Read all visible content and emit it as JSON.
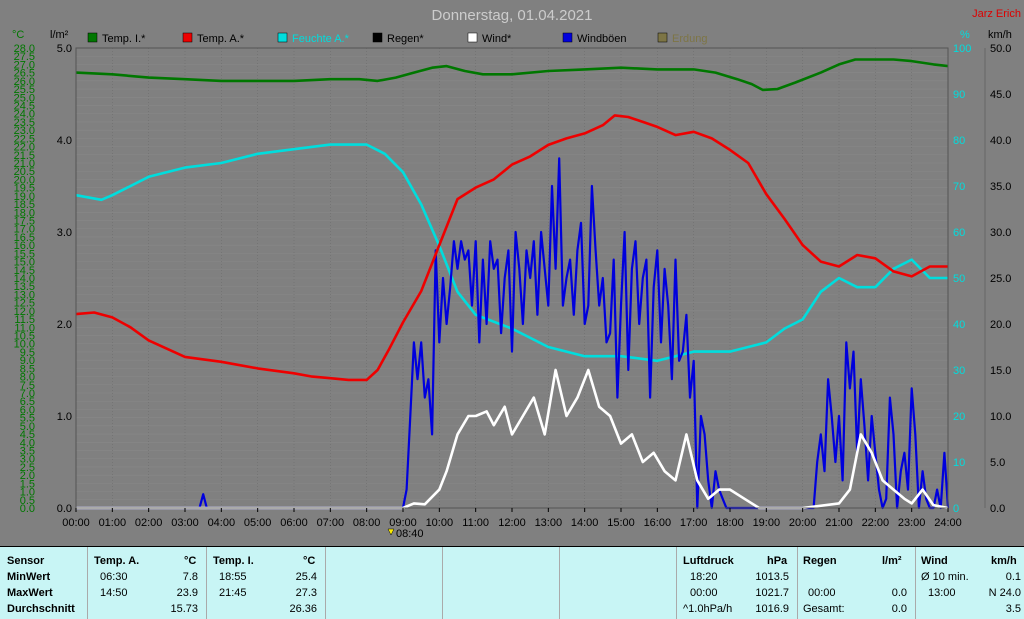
{
  "header": {
    "title": "Donnerstag, 01.04.2021",
    "author": "Jarz Erich",
    "left_units": [
      "°C",
      "l/m²"
    ],
    "right_units": [
      "%",
      "km/h"
    ],
    "marker_label": "08:40"
  },
  "legend": [
    {
      "label": "Temp. I.*",
      "color": "#007700"
    },
    {
      "label": "Temp. A.*",
      "color": "#ee0000"
    },
    {
      "label": "Feuchte A.*",
      "color": "#00dddd"
    },
    {
      "label": "Regen*",
      "color": "#000000"
    },
    {
      "label": "Wind*",
      "color": "#ffffff"
    },
    {
      "label": "Windböen",
      "color": "#0000dd"
    },
    {
      "label": "Erdung",
      "color": "#7d7545"
    }
  ],
  "colors": {
    "plot_bg": "#808080",
    "temp_scale": "#007700",
    "humidity_scale": "#00dddd",
    "title": "#cccccc",
    "author": "#dd0000"
  },
  "chart_data": {
    "type": "line",
    "x_axis": {
      "range": [
        "00:00",
        "24:00"
      ],
      "ticks": [
        "00:00",
        "01:00",
        "02:00",
        "03:00",
        "04:00",
        "05:00",
        "06:00",
        "07:00",
        "08:00",
        "09:00",
        "10:00",
        "11:00",
        "12:00",
        "13:00",
        "14:00",
        "15:00",
        "16:00",
        "17:00",
        "18:00",
        "19:00",
        "20:00",
        "21:00",
        "22:00",
        "23:00",
        "24:00"
      ]
    },
    "y_temp": {
      "unit": "°C",
      "ylim": [
        0,
        28
      ],
      "ticks": [
        "0.0",
        "0.5",
        "1.0",
        "1.5",
        "2.0",
        "2.5",
        "3.0",
        "3.5",
        "4.0",
        "4.5",
        "5.0",
        "5.5",
        "6.0",
        "6.5",
        "7.0",
        "7.5",
        "8.0",
        "8.5",
        "9.0",
        "9.5",
        "10.0",
        "10.5",
        "11.0",
        "11.5",
        "12.0",
        "12.5",
        "13.0",
        "13.5",
        "14.0",
        "14.5",
        "15.0",
        "15.5",
        "16.0",
        "16.5",
        "17.0",
        "17.5",
        "18.0",
        "18.5",
        "19.0",
        "19.5",
        "20.0",
        "20.5",
        "21.0",
        "21.5",
        "22.0",
        "22.5",
        "23.0",
        "23.5",
        "24.0",
        "24.5",
        "25.0",
        "25.5",
        "26.0",
        "26.5",
        "27.0",
        "27.5",
        "28.0"
      ]
    },
    "y_rain": {
      "unit": "l/m²",
      "ylim": [
        0,
        5
      ],
      "ticks": [
        "0.0",
        "1.0",
        "2.0",
        "3.0",
        "4.0",
        "5.0"
      ]
    },
    "y_humidity": {
      "unit": "%",
      "ylim": [
        0,
        100
      ],
      "ticks": [
        "0",
        "10",
        "20",
        "30",
        "40",
        "50",
        "60",
        "70",
        "80",
        "90",
        "100"
      ]
    },
    "y_wind": {
      "unit": "km/h",
      "ylim": [
        0,
        50
      ],
      "ticks": [
        "0.0",
        "5.0",
        "10.0",
        "15.0",
        "20.0",
        "25.0",
        "30.0",
        "35.0",
        "40.0",
        "45.0",
        "50.0"
      ]
    },
    "series": [
      {
        "name": "Temp. I.*",
        "axis": "temp",
        "color": "#007700",
        "x": [
          0,
          1,
          2,
          3,
          4,
          5,
          6,
          7,
          7.8,
          8.3,
          8.8,
          9.3,
          9.8,
          10.2,
          10.7,
          11.2,
          12,
          13,
          14,
          15,
          16,
          17,
          17.6,
          18.2,
          18.6,
          18.9,
          19.3,
          19.8,
          20.5,
          21,
          21.45,
          22,
          22.5,
          23,
          23.6,
          24
        ],
        "y": [
          26.5,
          26.4,
          26.2,
          26.1,
          26.0,
          26.0,
          26.0,
          26.1,
          26.1,
          26.0,
          26.2,
          26.5,
          26.8,
          26.9,
          26.6,
          26.4,
          26.4,
          26.6,
          26.7,
          26.8,
          26.7,
          26.7,
          26.5,
          26.1,
          25.8,
          25.45,
          25.5,
          25.9,
          26.5,
          27.0,
          27.3,
          27.3,
          27.3,
          27.2,
          27.0,
          26.9
        ]
      },
      {
        "name": "Temp. A.*",
        "axis": "temp",
        "color": "#ee0000",
        "x": [
          0,
          0.5,
          1,
          1.5,
          2,
          3,
          4,
          5,
          6,
          6.5,
          7,
          7.5,
          8,
          8.3,
          8.6,
          9,
          9.5,
          10,
          10.5,
          11,
          11.5,
          12,
          12.5,
          13,
          13.5,
          14,
          14.5,
          14.83,
          15.2,
          15.6,
          16,
          16.5,
          17,
          17.5,
          18,
          18.5,
          19,
          19.5,
          20,
          20.5,
          21,
          21.5,
          22,
          22.5,
          23,
          23.5,
          24
        ],
        "y": [
          11.8,
          11.9,
          11.6,
          11.0,
          10.2,
          9.2,
          8.9,
          8.5,
          8.2,
          8.0,
          7.9,
          7.8,
          7.8,
          8.4,
          9.6,
          11.3,
          13.2,
          16.0,
          18.8,
          19.5,
          20.0,
          20.9,
          21.4,
          22.1,
          22.5,
          22.8,
          23.3,
          23.9,
          23.8,
          23.5,
          23.2,
          22.7,
          22.9,
          22.5,
          21.8,
          21.0,
          19.1,
          17.6,
          16.0,
          15.0,
          14.7,
          15.4,
          15.2,
          14.4,
          14.1,
          14.7,
          14.7
        ]
      },
      {
        "name": "Feuchte A.*",
        "axis": "humidity",
        "color": "#00dddd",
        "x": [
          0,
          0.7,
          1,
          2,
          3,
          4,
          5,
          6,
          7,
          7.5,
          8,
          8.5,
          9,
          9.5,
          10,
          10.5,
          11,
          12,
          13,
          14,
          15,
          16,
          16.5,
          17,
          17.5,
          18,
          18.5,
          19,
          19.5,
          20,
          20.5,
          21,
          21.5,
          22,
          22.5,
          23,
          23.5,
          24
        ],
        "y": [
          68,
          67,
          68,
          72,
          74,
          75,
          77,
          78,
          79,
          79,
          79,
          77,
          73,
          66,
          57,
          47,
          42,
          39,
          35,
          33,
          33,
          32,
          33,
          34,
          34,
          34,
          35,
          36,
          39,
          41,
          47,
          50,
          48,
          48,
          52,
          54,
          50,
          50
        ]
      },
      {
        "name": "Wind*",
        "axis": "wind",
        "color": "#ffffff",
        "x": [
          0,
          9.0,
          9.3,
          9.6,
          10,
          10.2,
          10.5,
          10.8,
          11,
          11.3,
          11.5,
          11.8,
          12,
          12.3,
          12.6,
          12.9,
          13.2,
          13.5,
          13.8,
          14.1,
          14.4,
          14.7,
          15,
          15.3,
          15.6,
          15.9,
          16.2,
          16.5,
          16.8,
          17.1,
          17.4,
          17.7,
          18.0,
          18.4,
          18.8,
          19.0,
          20.0,
          21.0,
          21.3,
          21.6,
          21.9,
          22.2,
          22.5,
          22.8,
          23.0,
          23.3,
          23.6,
          24
        ],
        "y": [
          0,
          0,
          0.5,
          0.4,
          2,
          4,
          8,
          10,
          10,
          10.5,
          9,
          11,
          8,
          10,
          12,
          8,
          15,
          10,
          12,
          15,
          11,
          10,
          7,
          8,
          5,
          6,
          4,
          3,
          8,
          3,
          1,
          2,
          2,
          1,
          0,
          0,
          0,
          0.5,
          2,
          8,
          6,
          3,
          2,
          1,
          0.5,
          2,
          0.3,
          0
        ]
      },
      {
        "name": "Windböen",
        "axis": "wind",
        "color": "#0000dd",
        "x": [
          0,
          3.4,
          3.5,
          3.6,
          9.0,
          9.1,
          9.2,
          9.3,
          9.4,
          9.5,
          9.6,
          9.7,
          9.8,
          9.9,
          10.0,
          10.1,
          10.2,
          10.3,
          10.4,
          10.5,
          10.6,
          10.7,
          10.8,
          10.9,
          11.0,
          11.1,
          11.2,
          11.3,
          11.4,
          11.5,
          11.6,
          11.7,
          11.8,
          11.9,
          12.0,
          12.1,
          12.2,
          12.3,
          12.4,
          12.5,
          12.6,
          12.7,
          12.8,
          12.9,
          13.0,
          13.1,
          13.2,
          13.3,
          13.4,
          13.5,
          13.6,
          13.7,
          13.8,
          13.9,
          14.0,
          14.1,
          14.2,
          14.3,
          14.4,
          14.5,
          14.6,
          14.7,
          14.8,
          14.9,
          15.0,
          15.1,
          15.2,
          15.3,
          15.4,
          15.5,
          15.6,
          15.7,
          15.8,
          15.9,
          16.0,
          16.1,
          16.2,
          16.3,
          16.4,
          16.5,
          16.6,
          16.7,
          16.8,
          16.9,
          17.0,
          17.1,
          17.2,
          17.3,
          17.4,
          17.5,
          17.6,
          17.7,
          17.8,
          17.9,
          18.0,
          18.1,
          18.2,
          18.4,
          19.0,
          20.0,
          20.1,
          20.2,
          20.3,
          20.4,
          20.5,
          20.6,
          20.7,
          20.8,
          20.9,
          21.0,
          21.1,
          21.2,
          21.3,
          21.4,
          21.5,
          21.6,
          21.7,
          21.8,
          21.9,
          22.0,
          22.1,
          22.2,
          22.3,
          22.4,
          22.5,
          22.6,
          22.7,
          22.8,
          22.9,
          23.0,
          23.1,
          23.2,
          23.3,
          23.4,
          23.5,
          23.6,
          23.7,
          23.8,
          23.9,
          24.0
        ],
        "y": [
          0,
          0,
          1.5,
          0,
          0,
          2,
          10,
          18,
          14,
          18,
          12,
          14,
          8,
          28,
          18,
          25,
          20,
          24,
          29,
          26,
          29,
          27,
          28,
          22,
          29,
          18,
          27,
          20,
          29,
          26,
          27,
          19,
          25,
          28,
          17,
          30,
          26,
          20,
          28,
          25,
          29,
          21,
          30,
          26,
          22,
          35,
          26,
          38,
          22,
          25,
          27,
          21,
          28,
          31,
          20,
          22,
          35,
          28,
          22,
          25,
          18,
          19,
          27,
          12,
          22,
          30,
          15,
          26,
          29,
          20,
          25,
          27,
          12,
          24,
          28,
          18,
          26,
          22,
          14,
          27,
          16,
          17,
          21,
          12,
          16,
          0,
          10,
          8,
          3,
          0,
          4,
          2,
          1,
          0,
          0,
          0,
          0,
          0,
          0,
          0,
          0,
          0,
          0,
          5,
          8,
          4,
          14,
          10,
          5,
          10,
          3,
          18,
          13,
          17,
          6,
          14,
          9,
          3,
          10,
          6,
          2,
          0,
          1,
          12,
          8,
          0,
          4,
          6,
          2,
          13,
          8,
          0,
          4,
          1,
          0,
          0,
          2,
          0,
          6,
          0
        ]
      }
    ],
    "marker": {
      "time": "08:40"
    }
  },
  "stats": {
    "sensor_header": "Sensor",
    "rows": [
      "MinWert",
      "MaxWert",
      "Durchschnitt"
    ],
    "temp_a": {
      "header": "Temp. A.",
      "unit": "°C",
      "min_time": "06:30",
      "min": "7.8",
      "max_time": "14:50",
      "max": "23.9",
      "avg": "15.73"
    },
    "temp_i": {
      "header": "Temp. I.",
      "unit": "°C",
      "min_time": "18:55",
      "min": "25.4",
      "max_time": "21:45",
      "max": "27.3",
      "avg": "26.36"
    },
    "luftdruck": {
      "header": "Luftdruck",
      "unit": "hPa",
      "min_time": "18:20",
      "min": "1013.5",
      "max_time": "00:00",
      "max": "1021.7",
      "avg_label": "^1.0hPa/h",
      "avg": "1016.9"
    },
    "regen": {
      "header": "Regen",
      "unit": "l/m²",
      "max_time": "00:00",
      "max": "0.0",
      "total_label": "Gesamt:",
      "total": "0.0"
    },
    "wind": {
      "header": "Wind",
      "unit": "km/h",
      "min_label": "Ø 10 min.",
      "min": "0.1",
      "max_time": "13:00",
      "max": "N 24.0",
      "avg": "3.5"
    }
  }
}
